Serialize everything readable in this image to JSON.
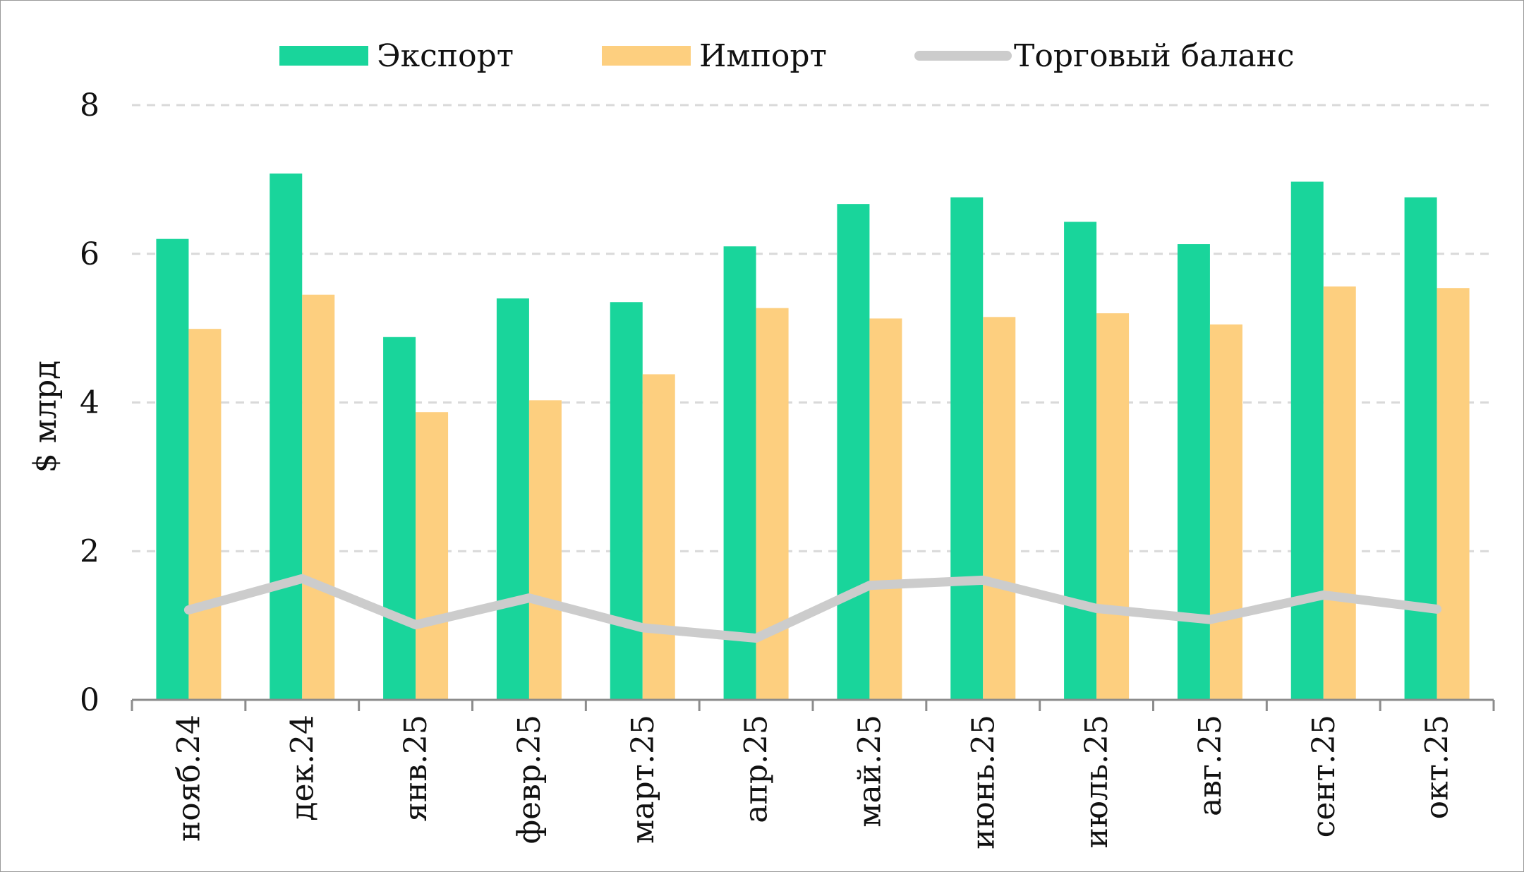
{
  "chart_data": {
    "type": "bar",
    "title": "",
    "xlabel": "",
    "ylabel": "$ млрд",
    "ylim": [
      0,
      8
    ],
    "yticks": [
      0,
      2,
      4,
      6,
      8
    ],
    "grid": true,
    "legend_position": "top",
    "categories": [
      "нояб.24",
      "дек.24",
      "янв.25",
      "февр.25",
      "март.25",
      "апр.25",
      "май.25",
      "июнь.25",
      "июль.25",
      "авг.25",
      "сент.25",
      "окт.25"
    ],
    "series": [
      {
        "name": "Экспорт",
        "type": "bar",
        "color": "#19d59b",
        "values": [
          6.2,
          7.08,
          4.88,
          5.4,
          5.35,
          6.1,
          6.67,
          6.76,
          6.43,
          6.13,
          6.97,
          6.76
        ]
      },
      {
        "name": "Импорт",
        "type": "bar",
        "color": "#fdcf7f",
        "values": [
          4.99,
          5.45,
          3.87,
          4.03,
          4.38,
          5.27,
          5.13,
          5.15,
          5.2,
          5.05,
          5.56,
          5.54
        ]
      },
      {
        "name": "Торговый баланс",
        "type": "line",
        "color": "#cccccc",
        "values": [
          1.21,
          1.63,
          1.01,
          1.37,
          0.97,
          0.83,
          1.54,
          1.61,
          1.23,
          1.08,
          1.41,
          1.22
        ]
      }
    ]
  }
}
